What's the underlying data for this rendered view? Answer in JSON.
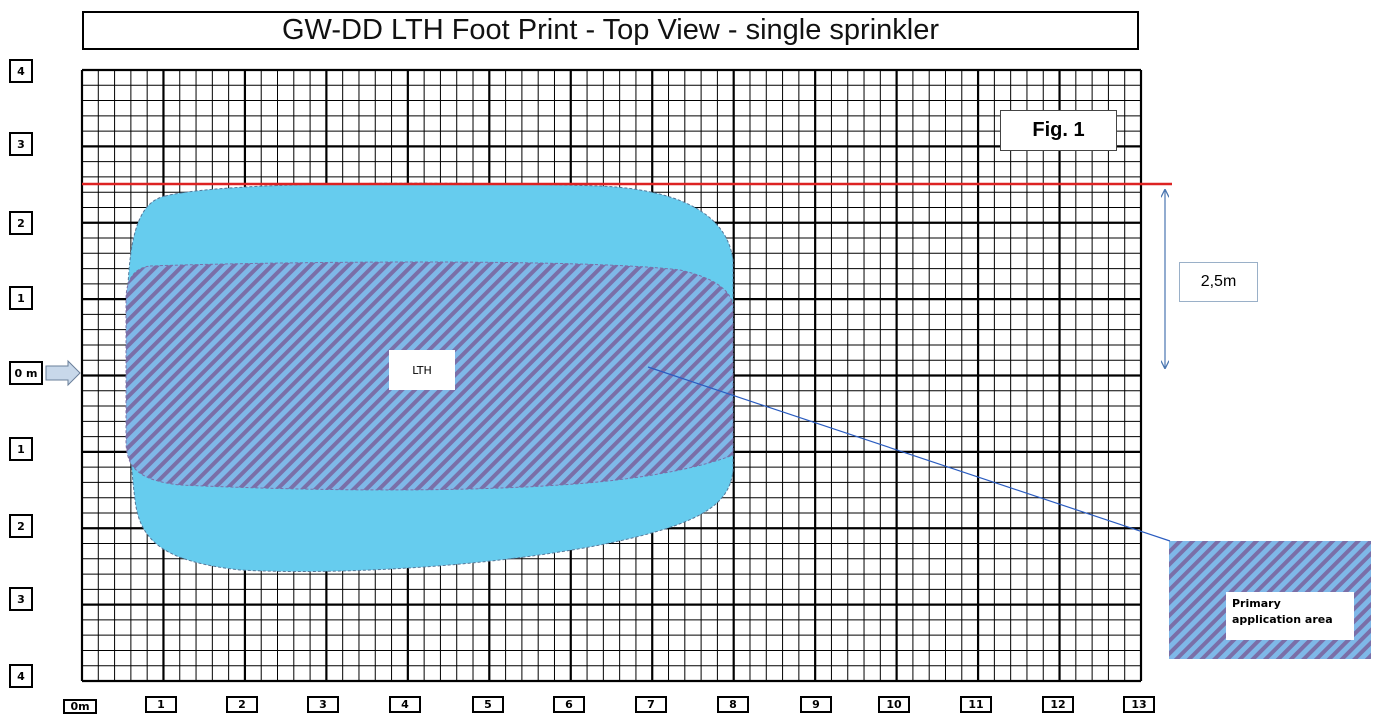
{
  "title": "GW-DD LTH Foot Print - Top View - single sprinkler",
  "figure_label": "Fig. 1",
  "zone_label": "LTH",
  "dimension_label": "2,5m",
  "legend": {
    "label": "Primary application area"
  },
  "y_axis_labels": [
    "4",
    "3",
    "2",
    "1",
    "0 m",
    "1",
    "2",
    "3",
    "4"
  ],
  "x_axis_labels": [
    "0m",
    "1",
    "2",
    "3",
    "4",
    "5",
    "6",
    "7",
    "8",
    "9",
    "10",
    "11",
    "12",
    "13"
  ],
  "colors": {
    "outer_zone_fill": "#66ccee",
    "hatch_fill": "#7fb8e8",
    "hatch_stripe": "#7a6fa8",
    "limit_line": "#dd2222",
    "dimension_arrow": "#4a76b0",
    "pointer_line": "#2a5cc0"
  }
}
